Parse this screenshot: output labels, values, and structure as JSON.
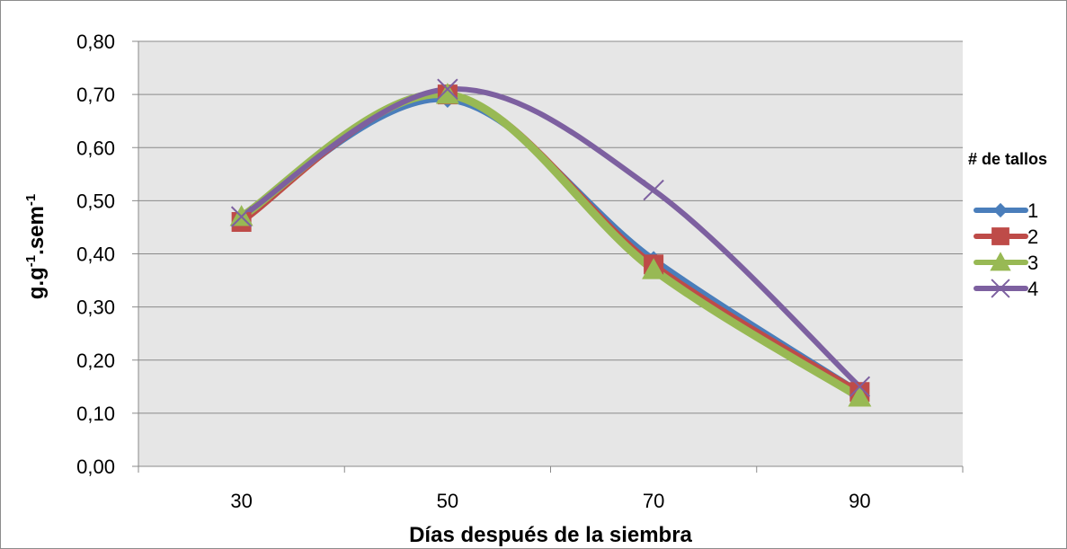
{
  "chart_data": {
    "type": "line",
    "smooth": true,
    "title": "",
    "xlabel": "Días después de la siembra",
    "ylabel": {
      "base": "g.g",
      "sup1": "-1",
      "mid": ".sem",
      "sup2": "-1"
    },
    "x": [
      30,
      50,
      70,
      90
    ],
    "xlim": [
      20,
      100
    ],
    "xticks": [
      30,
      50,
      70,
      90
    ],
    "ylim": [
      0,
      0.8
    ],
    "yticks": [
      0,
      0.1,
      0.2,
      0.3,
      0.4,
      0.5,
      0.6,
      0.7,
      0.8
    ],
    "ytick_labels": [
      "0,00",
      "0,10",
      "0,20",
      "0,30",
      "0,40",
      "0,50",
      "0,60",
      "0,70",
      "0,80"
    ],
    "grid": true,
    "plot_background": "#e6e6e6",
    "legend": {
      "title": "# de tallos",
      "position": "right"
    },
    "series": [
      {
        "name": "1",
        "values": [
          0.47,
          0.69,
          0.39,
          0.14
        ],
        "color": "#4a7ebb",
        "marker": "diamond"
      },
      {
        "name": "2",
        "values": [
          0.46,
          0.7,
          0.38,
          0.14
        ],
        "color": "#be4b48",
        "marker": "square"
      },
      {
        "name": "3",
        "values": [
          0.47,
          0.7,
          0.37,
          0.13
        ],
        "color": "#98b954",
        "marker": "triangle"
      },
      {
        "name": "4",
        "values": [
          0.47,
          0.71,
          0.52,
          0.15
        ],
        "color": "#7d60a0",
        "marker": "x"
      }
    ]
  }
}
